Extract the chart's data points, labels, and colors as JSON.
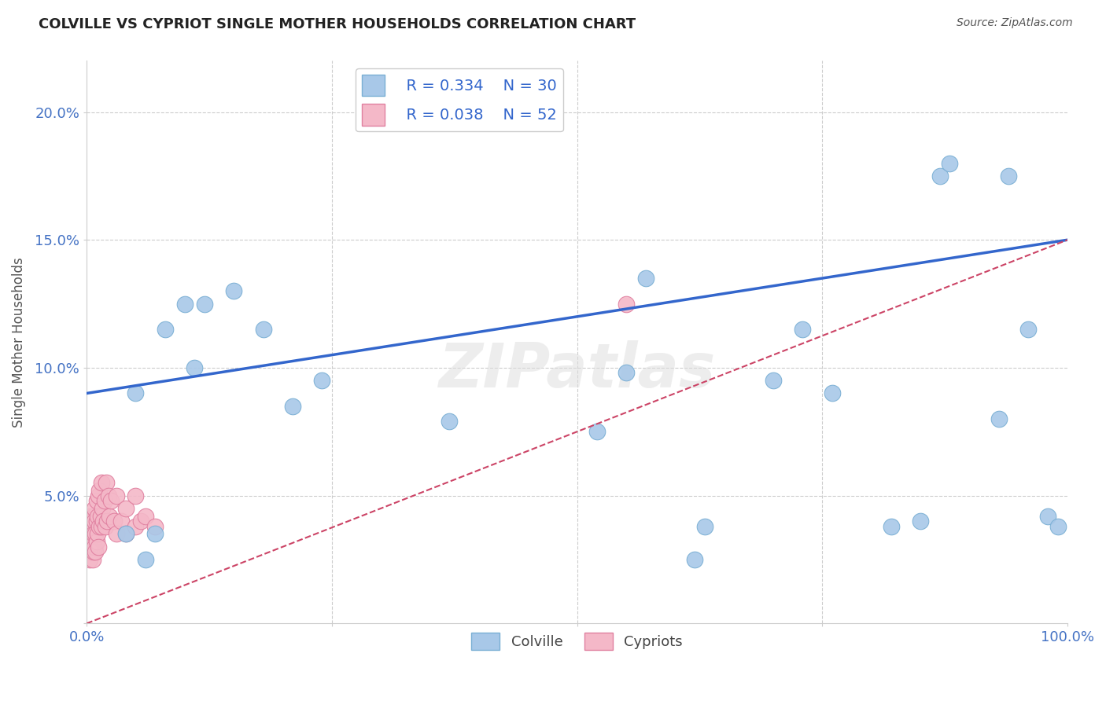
{
  "title": "COLVILLE VS CYPRIOT SINGLE MOTHER HOUSEHOLDS CORRELATION CHART",
  "source": "Source: ZipAtlas.com",
  "ylabel": "Single Mother Households",
  "xlim": [
    0.0,
    1.0
  ],
  "ylim": [
    0.0,
    0.22
  ],
  "xticks": [
    0.0,
    0.25,
    0.5,
    0.75,
    1.0
  ],
  "xtick_labels": [
    "0.0%",
    "",
    "",
    "",
    "100.0%"
  ],
  "yticks": [
    0.0,
    0.05,
    0.1,
    0.15,
    0.2
  ],
  "ytick_labels": [
    "",
    "5.0%",
    "10.0%",
    "15.0%",
    "20.0%"
  ],
  "colville_x": [
    0.04,
    0.05,
    0.06,
    0.07,
    0.08,
    0.1,
    0.11,
    0.12,
    0.15,
    0.18,
    0.21,
    0.24,
    0.37,
    0.52,
    0.55,
    0.57,
    0.62,
    0.63,
    0.7,
    0.73,
    0.76,
    0.82,
    0.85,
    0.87,
    0.88,
    0.93,
    0.94,
    0.96,
    0.98,
    0.99
  ],
  "colville_y": [
    0.035,
    0.09,
    0.025,
    0.035,
    0.115,
    0.125,
    0.1,
    0.125,
    0.13,
    0.115,
    0.085,
    0.095,
    0.079,
    0.075,
    0.098,
    0.135,
    0.025,
    0.038,
    0.095,
    0.115,
    0.09,
    0.038,
    0.04,
    0.175,
    0.18,
    0.08,
    0.175,
    0.115,
    0.042,
    0.038
  ],
  "cypriot_x": [
    0.002,
    0.003,
    0.003,
    0.004,
    0.004,
    0.005,
    0.005,
    0.005,
    0.006,
    0.006,
    0.006,
    0.007,
    0.007,
    0.007,
    0.008,
    0.008,
    0.008,
    0.009,
    0.009,
    0.01,
    0.01,
    0.01,
    0.011,
    0.011,
    0.012,
    0.012,
    0.013,
    0.013,
    0.014,
    0.015,
    0.015,
    0.016,
    0.017,
    0.018,
    0.019,
    0.02,
    0.021,
    0.022,
    0.023,
    0.025,
    0.028,
    0.03,
    0.03,
    0.035,
    0.04,
    0.04,
    0.05,
    0.05,
    0.055,
    0.06,
    0.07,
    0.55
  ],
  "cypriot_y": [
    0.035,
    0.04,
    0.025,
    0.03,
    0.042,
    0.035,
    0.028,
    0.04,
    0.032,
    0.038,
    0.025,
    0.035,
    0.042,
    0.028,
    0.04,
    0.03,
    0.045,
    0.035,
    0.028,
    0.04,
    0.032,
    0.048,
    0.035,
    0.042,
    0.03,
    0.05,
    0.038,
    0.052,
    0.042,
    0.038,
    0.055,
    0.045,
    0.04,
    0.048,
    0.038,
    0.055,
    0.04,
    0.05,
    0.042,
    0.048,
    0.04,
    0.035,
    0.05,
    0.04,
    0.045,
    0.035,
    0.038,
    0.05,
    0.04,
    0.042,
    0.038,
    0.125
  ],
  "colville_color": "#a8c8e8",
  "cypriot_color": "#f4b8c8",
  "colville_edge": "#7aafd4",
  "cypriot_edge": "#e080a0",
  "blue_line_color": "#3366cc",
  "red_line_color": "#cc4466",
  "blue_line_start_y": 0.09,
  "blue_line_end_y": 0.15,
  "red_line_start_y": 0.0,
  "red_line_end_y": 0.15,
  "legend_R_colville": "R = 0.334",
  "legend_N_colville": "N = 30",
  "legend_R_cypriot": "R = 0.038",
  "legend_N_cypriot": "N = 52",
  "watermark": "ZIPatlas",
  "grid_color": "#cccccc",
  "title_color": "#222222",
  "tick_color": "#4472c4"
}
